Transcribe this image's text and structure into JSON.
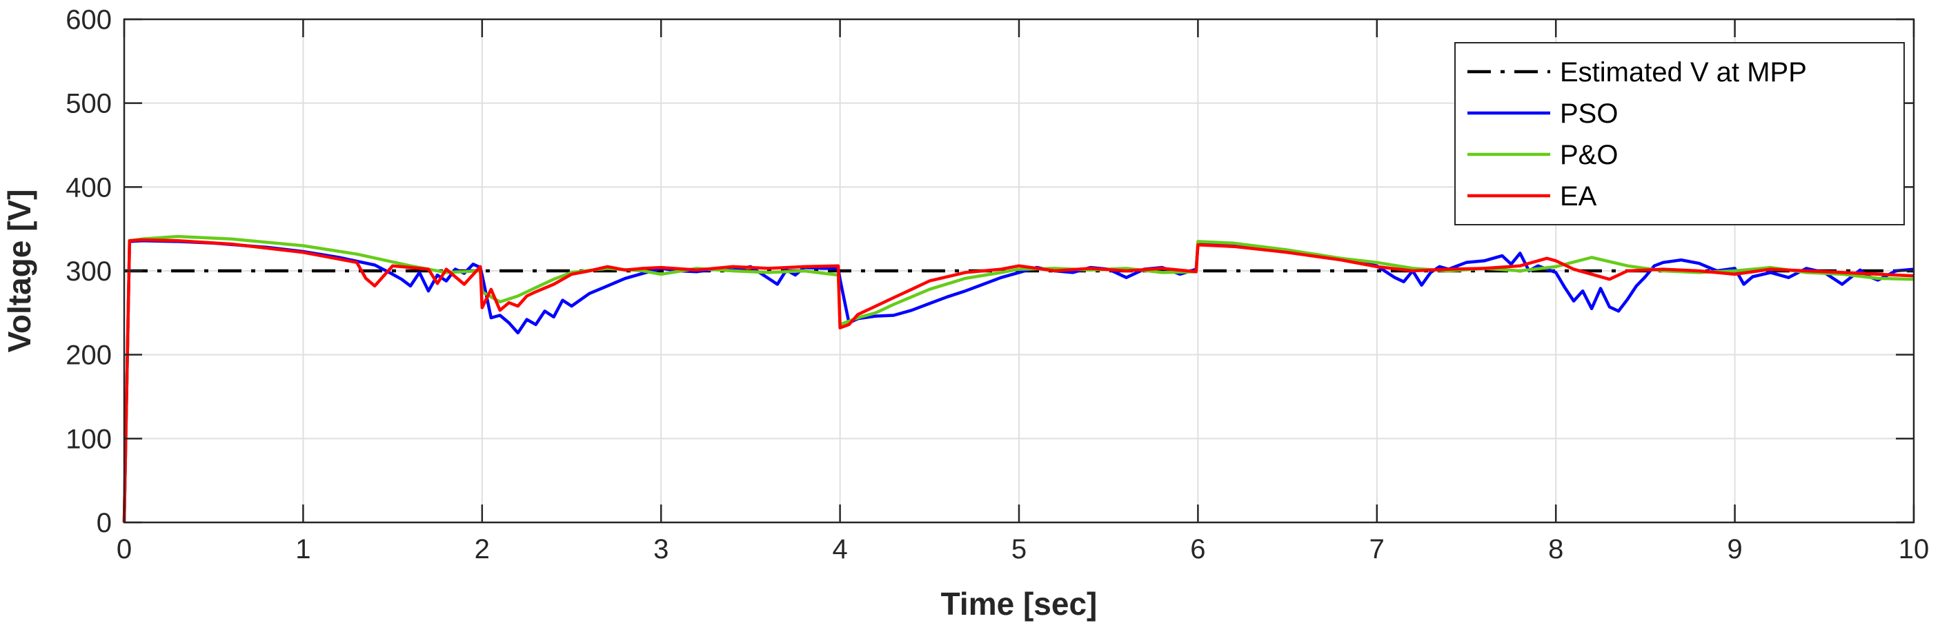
{
  "chart_data": {
    "type": "line",
    "xlabel": "Time [sec]",
    "ylabel": "Voltage [V]",
    "xlim": [
      0,
      10
    ],
    "ylim": [
      0,
      600
    ],
    "xticks": [
      0,
      1,
      2,
      3,
      4,
      5,
      6,
      7,
      8,
      9,
      10
    ],
    "yticks": [
      0,
      100,
      200,
      300,
      400,
      500,
      600
    ],
    "grid": true,
    "legend_position": "top-right",
    "series": [
      {
        "name": "Estimated V at MPP",
        "color": "#000000",
        "style": "dash-dot",
        "x": [
          0,
          10
        ],
        "y": [
          300,
          300
        ]
      },
      {
        "name": "PSO",
        "color": "#0000ff",
        "style": "solid",
        "x": [
          0,
          0.03,
          0.1,
          0.3,
          0.5,
          0.8,
          1.0,
          1.2,
          1.4,
          1.5,
          1.55,
          1.6,
          1.65,
          1.7,
          1.75,
          1.8,
          1.85,
          1.9,
          1.95,
          1.99,
          2.0,
          2.05,
          2.1,
          2.15,
          2.2,
          2.25,
          2.3,
          2.35,
          2.4,
          2.45,
          2.5,
          2.6,
          2.7,
          2.8,
          2.9,
          3.0,
          3.1,
          3.2,
          3.3,
          3.4,
          3.5,
          3.6,
          3.65,
          3.7,
          3.75,
          3.8,
          3.9,
          3.99,
          4.0,
          4.05,
          4.1,
          4.2,
          4.3,
          4.4,
          4.5,
          4.6,
          4.7,
          4.8,
          4.9,
          5.0,
          5.1,
          5.2,
          5.3,
          5.4,
          5.5,
          5.6,
          5.7,
          5.8,
          5.9,
          5.99,
          6.0,
          6.1,
          6.3,
          6.5,
          6.8,
          7.0,
          7.1,
          7.15,
          7.2,
          7.25,
          7.3,
          7.35,
          7.4,
          7.5,
          7.6,
          7.7,
          7.75,
          7.8,
          7.85,
          7.9,
          8.0,
          8.05,
          8.1,
          8.15,
          8.2,
          8.25,
          8.3,
          8.35,
          8.4,
          8.45,
          8.5,
          8.55,
          8.6,
          8.7,
          8.8,
          8.9,
          9.0,
          9.05,
          9.1,
          9.2,
          9.3,
          9.4,
          9.5,
          9.6,
          9.7,
          9.75,
          9.8,
          9.9,
          10.0
        ],
        "y": [
          0,
          335,
          336,
          335,
          333,
          328,
          323,
          316,
          307,
          296,
          290,
          282,
          298,
          276,
          295,
          288,
          302,
          297,
          308,
          304,
          295,
          244,
          247,
          238,
          226,
          242,
          236,
          252,
          245,
          265,
          258,
          273,
          282,
          291,
          297,
          303,
          300,
          299,
          302,
          301,
          305,
          291,
          284,
          301,
          295,
          304,
          303,
          303,
          290,
          238,
          243,
          246,
          247,
          253,
          261,
          269,
          276,
          284,
          292,
          298,
          304,
          300,
          298,
          304,
          302,
          292,
          302,
          304,
          296,
          302,
          332,
          331,
          328,
          322,
          314,
          306,
          292,
          287,
          300,
          283,
          298,
          305,
          302,
          310,
          312,
          318,
          308,
          321,
          300,
          306,
          298,
          280,
          264,
          276,
          255,
          279,
          257,
          252,
          266,
          282,
          293,
          306,
          310,
          313,
          309,
          300,
          303,
          284,
          293,
          298,
          292,
          303,
          298,
          284,
          301,
          293,
          289,
          300,
          302
        ]
      },
      {
        "name": "P&O",
        "color": "#66cc1a",
        "style": "solid",
        "x": [
          0,
          0.03,
          0.1,
          0.3,
          0.6,
          1.0,
          1.3,
          1.6,
          1.8,
          1.99,
          2.0,
          2.1,
          2.2,
          2.3,
          2.4,
          2.5,
          2.7,
          2.9,
          3.0,
          3.2,
          3.4,
          3.6,
          3.8,
          3.99,
          4.0,
          4.1,
          4.2,
          4.3,
          4.5,
          4.7,
          4.9,
          5.0,
          5.2,
          5.4,
          5.6,
          5.8,
          5.99,
          6.0,
          6.2,
          6.5,
          6.8,
          7.0,
          7.2,
          7.4,
          7.6,
          7.8,
          8.0,
          8.2,
          8.4,
          8.6,
          8.8,
          9.0,
          9.2,
          9.4,
          9.6,
          9.8,
          10.0
        ],
        "y": [
          0,
          336,
          338,
          341,
          338,
          330,
          320,
          306,
          298,
          300,
          275,
          263,
          270,
          280,
          290,
          298,
          303,
          300,
          296,
          303,
          300,
          298,
          300,
          295,
          236,
          244,
          250,
          260,
          278,
          291,
          298,
          302,
          303,
          301,
          303,
          298,
          299,
          335,
          333,
          325,
          315,
          310,
          303,
          300,
          303,
          300,
          305,
          316,
          306,
          300,
          298,
          300,
          304,
          298,
          296,
          291,
          290
        ]
      },
      {
        "name": "EA",
        "color": "#ff0000",
        "style": "solid",
        "x": [
          0,
          0.03,
          0.1,
          0.3,
          0.6,
          1.0,
          1.3,
          1.35,
          1.4,
          1.5,
          1.6,
          1.7,
          1.75,
          1.8,
          1.9,
          1.99,
          2.0,
          2.05,
          2.1,
          2.15,
          2.2,
          2.25,
          2.3,
          2.4,
          2.5,
          2.6,
          2.7,
          2.8,
          2.9,
          3.0,
          3.2,
          3.4,
          3.6,
          3.8,
          3.99,
          4.0,
          4.05,
          4.1,
          4.2,
          4.3,
          4.4,
          4.5,
          4.7,
          4.9,
          5.0,
          5.2,
          5.4,
          5.6,
          5.8,
          5.99,
          6.0,
          6.2,
          6.5,
          6.8,
          7.0,
          7.2,
          7.4,
          7.6,
          7.8,
          7.95,
          8.0,
          8.1,
          8.2,
          8.3,
          8.4,
          8.6,
          8.8,
          9.0,
          9.2,
          9.4,
          9.6,
          9.8,
          10.0
        ],
        "y": [
          0,
          336,
          337,
          336,
          332,
          322,
          310,
          291,
          282,
          306,
          304,
          302,
          285,
          302,
          284,
          305,
          256,
          278,
          253,
          262,
          258,
          270,
          275,
          284,
          296,
          300,
          305,
          301,
          303,
          304,
          301,
          305,
          303,
          305,
          306,
          232,
          236,
          248,
          258,
          268,
          278,
          288,
          298,
          302,
          306,
          300,
          303,
          300,
          303,
          299,
          331,
          329,
          322,
          313,
          305,
          300,
          302,
          303,
          306,
          315,
          312,
          302,
          296,
          290,
          300,
          302,
          300,
          296,
          302,
          300,
          298,
          296,
          294
        ]
      }
    ]
  }
}
